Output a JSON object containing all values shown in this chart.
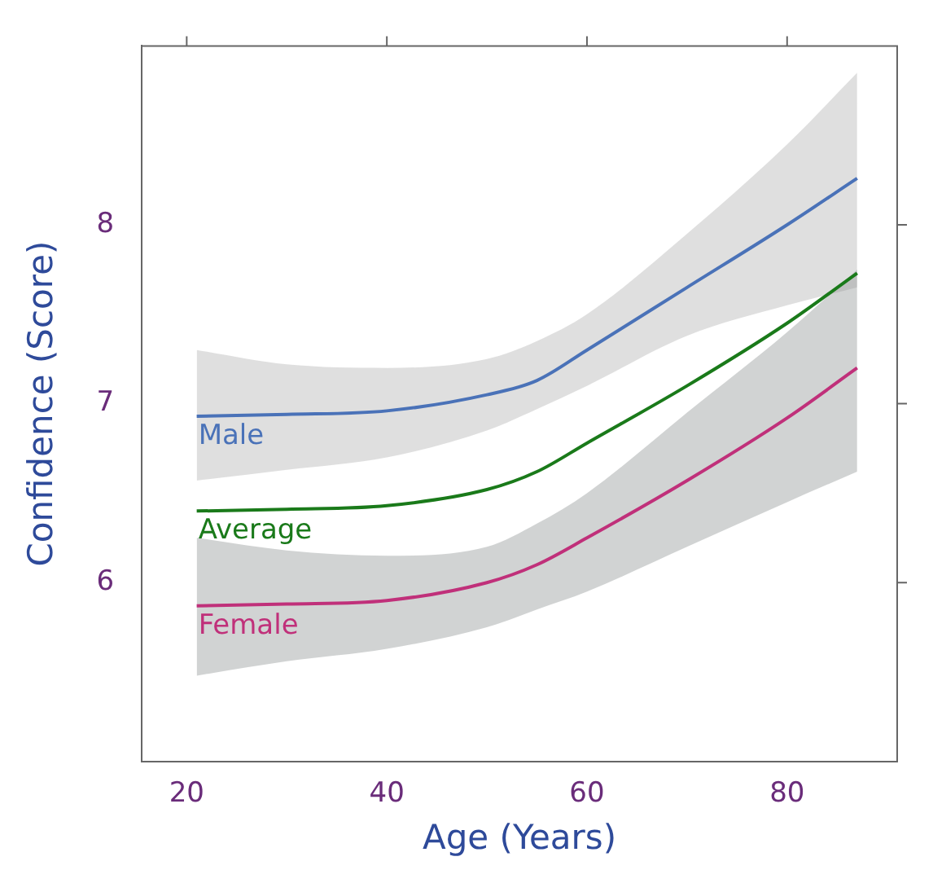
{
  "chart_data": {
    "type": "line",
    "xlabel": "Age (Years)",
    "ylabel": "Confidence (Score)",
    "x": [
      21,
      30,
      40,
      50,
      55,
      60,
      70,
      80,
      87
    ],
    "xlim": [
      15.5,
      91
    ],
    "xticks": [
      20,
      40,
      60,
      80
    ],
    "ylim": [
      5,
      9
    ],
    "yticks": [
      6,
      7,
      8
    ],
    "grid": false,
    "legend": false,
    "marker": "none",
    "line_style": "solid",
    "series": [
      {
        "name": "Male",
        "color": "#4a72b8",
        "values": [
          6.93,
          6.94,
          6.96,
          7.05,
          7.13,
          7.3,
          7.65,
          8.0,
          8.26
        ],
        "lower": [
          6.57,
          6.63,
          6.7,
          6.85,
          6.97,
          7.1,
          7.38,
          7.55,
          7.65
        ],
        "upper": [
          7.3,
          7.22,
          7.2,
          7.25,
          7.35,
          7.5,
          7.95,
          8.45,
          8.85
        ]
      },
      {
        "name": "Average",
        "color": "#1a7a1a",
        "values": [
          6.4,
          6.41,
          6.43,
          6.52,
          6.62,
          6.78,
          7.1,
          7.45,
          7.73
        ]
      },
      {
        "name": "Female",
        "color": "#c0307a",
        "values": [
          5.87,
          5.88,
          5.9,
          6.0,
          6.1,
          6.25,
          6.57,
          6.92,
          7.2
        ],
        "lower": [
          5.48,
          5.56,
          5.63,
          5.75,
          5.85,
          5.95,
          6.2,
          6.45,
          6.62
        ],
        "upper": [
          6.25,
          6.18,
          6.15,
          6.2,
          6.33,
          6.5,
          6.95,
          7.4,
          7.75
        ]
      }
    ]
  }
}
